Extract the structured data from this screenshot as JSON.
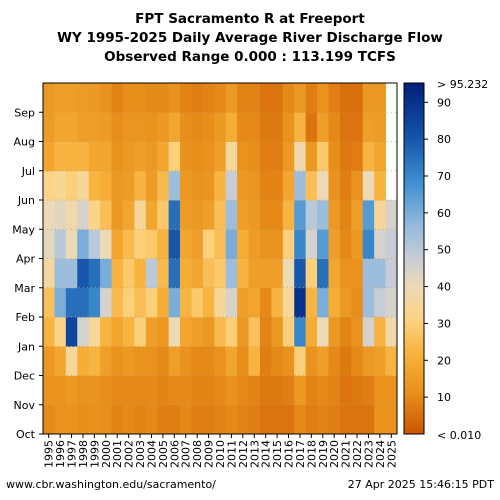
{
  "chart_data": {
    "type": "heatmap",
    "title": "FPT Sacramento R at Freeport",
    "subtitle": "WY 1995-2025 Daily Average River Discharge Flow",
    "subtitle2": "Observed Range 0.000 : 113.199 TCFS",
    "x_categories": [
      "1995",
      "1996",
      "1997",
      "1998",
      "1999",
      "2000",
      "2001",
      "2002",
      "2003",
      "2004",
      "2005",
      "2006",
      "2007",
      "2008",
      "2009",
      "2010",
      "2011",
      "2012",
      "2013",
      "2014",
      "2015",
      "2016",
      "2017",
      "2018",
      "2019",
      "2020",
      "2021",
      "2022",
      "2023",
      "2024",
      "2025"
    ],
    "y_categories": [
      "Oct",
      "Nov",
      "Dec",
      "Jan",
      "Feb",
      "Mar",
      "Apr",
      "May",
      "Jun",
      "Jul",
      "Aug",
      "Sep"
    ],
    "colorbar": {
      "ticks": [
        10,
        20,
        30,
        40,
        50,
        60,
        70,
        80,
        90
      ],
      "top_label": "> 95.232",
      "bottom_label": "< 0.010",
      "range": [
        0,
        95.232
      ]
    },
    "monthly_flow_estimates_tcfs": [
      [
        10,
        12,
        14,
        22,
        26,
        36,
        42,
        40,
        32,
        18,
        15,
        14
      ],
      [
        12,
        12,
        18,
        32,
        60,
        55,
        50,
        42,
        34,
        22,
        18,
        16
      ],
      [
        12,
        14,
        35,
        85,
        75,
        55,
        40,
        38,
        30,
        22,
        18,
        16
      ],
      [
        11,
        12,
        20,
        45,
        75,
        80,
        60,
        45,
        35,
        22,
        16,
        15
      ],
      [
        12,
        13,
        22,
        35,
        70,
        75,
        50,
        32,
        22,
        18,
        16,
        14
      ],
      [
        11,
        11,
        16,
        22,
        45,
        60,
        40,
        25,
        20,
        18,
        15,
        12
      ],
      [
        9,
        10,
        12,
        18,
        24,
        22,
        18,
        14,
        14,
        12,
        11,
        9
      ],
      [
        10,
        10,
        14,
        22,
        30,
        28,
        24,
        18,
        15,
        14,
        13,
        11
      ],
      [
        9,
        10,
        12,
        30,
        25,
        22,
        30,
        35,
        22,
        16,
        13,
        11
      ],
      [
        10,
        10,
        12,
        16,
        30,
        50,
        28,
        18,
        15,
        14,
        12,
        10
      ],
      [
        8,
        9,
        10,
        14,
        20,
        24,
        22,
        28,
        24,
        18,
        14,
        10
      ],
      [
        8,
        10,
        16,
        40,
        60,
        75,
        80,
        75,
        55,
        30,
        18,
        12
      ],
      [
        10,
        10,
        12,
        18,
        22,
        20,
        18,
        15,
        14,
        12,
        11,
        9
      ],
      [
        8,
        9,
        10,
        16,
        28,
        18,
        16,
        14,
        12,
        11,
        10,
        8
      ],
      [
        8,
        9,
        10,
        14,
        22,
        25,
        30,
        16,
        13,
        12,
        11,
        9
      ],
      [
        9,
        10,
        12,
        24,
        35,
        28,
        25,
        25,
        22,
        16,
        14,
        10
      ],
      [
        10,
        12,
        18,
        30,
        45,
        55,
        60,
        55,
        48,
        35,
        20,
        14
      ],
      [
        9,
        10,
        11,
        14,
        16,
        22,
        20,
        16,
        14,
        12,
        10,
        9
      ],
      [
        8,
        9,
        22,
        26,
        18,
        16,
        15,
        14,
        13,
        11,
        10,
        9
      ],
      [
        6,
        7,
        8,
        9,
        10,
        16,
        12,
        10,
        9,
        8,
        7,
        6
      ],
      [
        6,
        7,
        10,
        14,
        22,
        16,
        12,
        10,
        9,
        8,
        7,
        6
      ],
      [
        6,
        8,
        12,
        30,
        35,
        40,
        30,
        22,
        18,
        14,
        12,
        10
      ],
      [
        10,
        14,
        30,
        70,
        90,
        80,
        70,
        65,
        55,
        38,
        22,
        14
      ],
      [
        8,
        9,
        12,
        20,
        22,
        30,
        45,
        50,
        25,
        14,
        6,
        8
      ],
      [
        9,
        10,
        16,
        40,
        60,
        75,
        65,
        55,
        40,
        28,
        16,
        12
      ],
      [
        8,
        9,
        10,
        14,
        20,
        18,
        16,
        14,
        12,
        11,
        10,
        8
      ],
      [
        6,
        6,
        7,
        9,
        14,
        12,
        10,
        9,
        8,
        7,
        6,
        5
      ],
      [
        6,
        7,
        10,
        12,
        11,
        12,
        14,
        16,
        12,
        8,
        6,
        5
      ],
      [
        6,
        8,
        14,
        45,
        55,
        55,
        70,
        65,
        40,
        22,
        16,
        14
      ],
      [
        12,
        12,
        16,
        22,
        48,
        55,
        45,
        35,
        22,
        18,
        15,
        14
      ],
      [
        12,
        12,
        22,
        38,
        45,
        48,
        48,
        45,
        null,
        null,
        null,
        null
      ]
    ]
  },
  "footer": {
    "left": "www.cbr.washington.edu/sacramento/",
    "right": "27 Apr 2025 15:46:15 PDT"
  }
}
